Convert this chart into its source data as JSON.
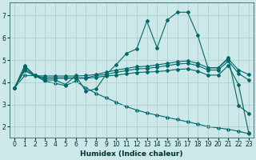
{
  "xlabel": "Humidex (Indice chaleur)",
  "bg_color": "#cce8e8",
  "grid_color": "#aacaca",
  "line_color": "#006868",
  "xlim": [
    -0.5,
    23.5
  ],
  "ylim": [
    1.5,
    7.6
  ],
  "yticks": [
    2,
    3,
    4,
    5,
    6,
    7
  ],
  "xticks": [
    0,
    1,
    2,
    3,
    4,
    5,
    6,
    7,
    8,
    9,
    10,
    11,
    12,
    13,
    14,
    15,
    16,
    17,
    18,
    19,
    20,
    21,
    22,
    23
  ],
  "s1_x": [
    0,
    1,
    2,
    3,
    4,
    5,
    6,
    7,
    8,
    9,
    10,
    11,
    12,
    13,
    14,
    15,
    16,
    17,
    18,
    19,
    20,
    21,
    22,
    23
  ],
  "s1_y": [
    3.75,
    4.75,
    4.3,
    4.1,
    4.1,
    3.9,
    4.3,
    3.6,
    3.7,
    4.35,
    4.8,
    5.3,
    5.5,
    6.75,
    5.55,
    6.8,
    7.15,
    7.15,
    6.1,
    4.65,
    4.65,
    5.1,
    2.95,
    2.6
  ],
  "s2_x": [
    0,
    1,
    2,
    3,
    4,
    5,
    6,
    7,
    8,
    9,
    10,
    11,
    12,
    13,
    14,
    15,
    16,
    17,
    18,
    19,
    20,
    21,
    22,
    23
  ],
  "s2_y": [
    3.75,
    4.72,
    4.3,
    4.28,
    4.28,
    4.28,
    4.28,
    4.3,
    4.35,
    4.45,
    4.55,
    4.62,
    4.7,
    4.72,
    4.78,
    4.85,
    4.92,
    4.96,
    4.85,
    4.65,
    4.65,
    5.05,
    4.55,
    4.35
  ],
  "s3_x": [
    0,
    1,
    2,
    3,
    4,
    5,
    6,
    7,
    8,
    9,
    10,
    11,
    12,
    13,
    14,
    15,
    16,
    17,
    18,
    19,
    20,
    21,
    22,
    23
  ],
  "s3_y": [
    3.75,
    4.6,
    4.3,
    4.2,
    4.2,
    4.2,
    4.2,
    4.2,
    4.3,
    4.35,
    4.45,
    4.52,
    4.6,
    4.62,
    4.68,
    4.75,
    4.82,
    4.85,
    4.75,
    4.55,
    4.55,
    4.95,
    4.4,
    4.1
  ],
  "s4_x": [
    0,
    1,
    2,
    3,
    4,
    5,
    6,
    7,
    8,
    9,
    10,
    11,
    12,
    13,
    14,
    15,
    16,
    17,
    18,
    19,
    20,
    21,
    22,
    23
  ],
  "s4_y": [
    3.75,
    4.52,
    4.28,
    4.18,
    4.18,
    4.18,
    4.18,
    4.18,
    4.22,
    4.28,
    4.32,
    4.38,
    4.44,
    4.46,
    4.48,
    4.52,
    4.58,
    4.6,
    4.5,
    4.32,
    4.32,
    4.75,
    3.9,
    1.72
  ],
  "s5_x": [
    0,
    1,
    2,
    3,
    4,
    5,
    6,
    7,
    8,
    9,
    10,
    11,
    12,
    13,
    14,
    15,
    16,
    17,
    18,
    19,
    20,
    21,
    22,
    23
  ],
  "s5_y": [
    3.75,
    4.3,
    4.3,
    4.05,
    3.95,
    3.85,
    4.05,
    3.75,
    3.5,
    3.3,
    3.1,
    2.9,
    2.75,
    2.62,
    2.52,
    2.42,
    2.32,
    2.22,
    2.12,
    2.0,
    1.95,
    1.88,
    1.8,
    1.68
  ]
}
